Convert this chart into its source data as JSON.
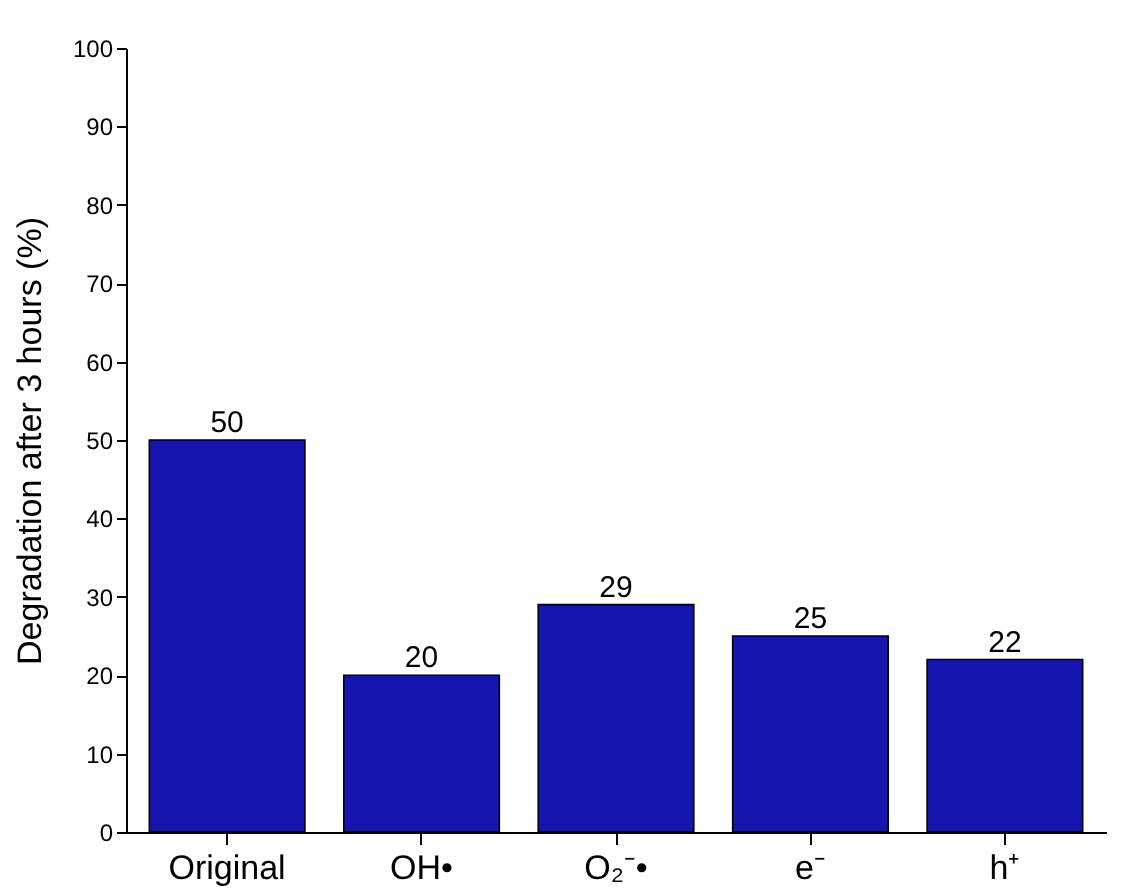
{
  "chart_data": {
    "type": "bar",
    "ylabel": "Degradation after 3 hours (%)",
    "categories": [
      "Original",
      "OH•",
      "O₂⁻•",
      "e⁻",
      "h⁺"
    ],
    "values": [
      50,
      20,
      29,
      25,
      22
    ],
    "color": "#1515b0",
    "ylim": [
      0,
      100
    ],
    "yticks": [
      0,
      10,
      20,
      30,
      40,
      50,
      60,
      70,
      80,
      90,
      100
    ],
    "data_labels": true,
    "grid": false
  }
}
